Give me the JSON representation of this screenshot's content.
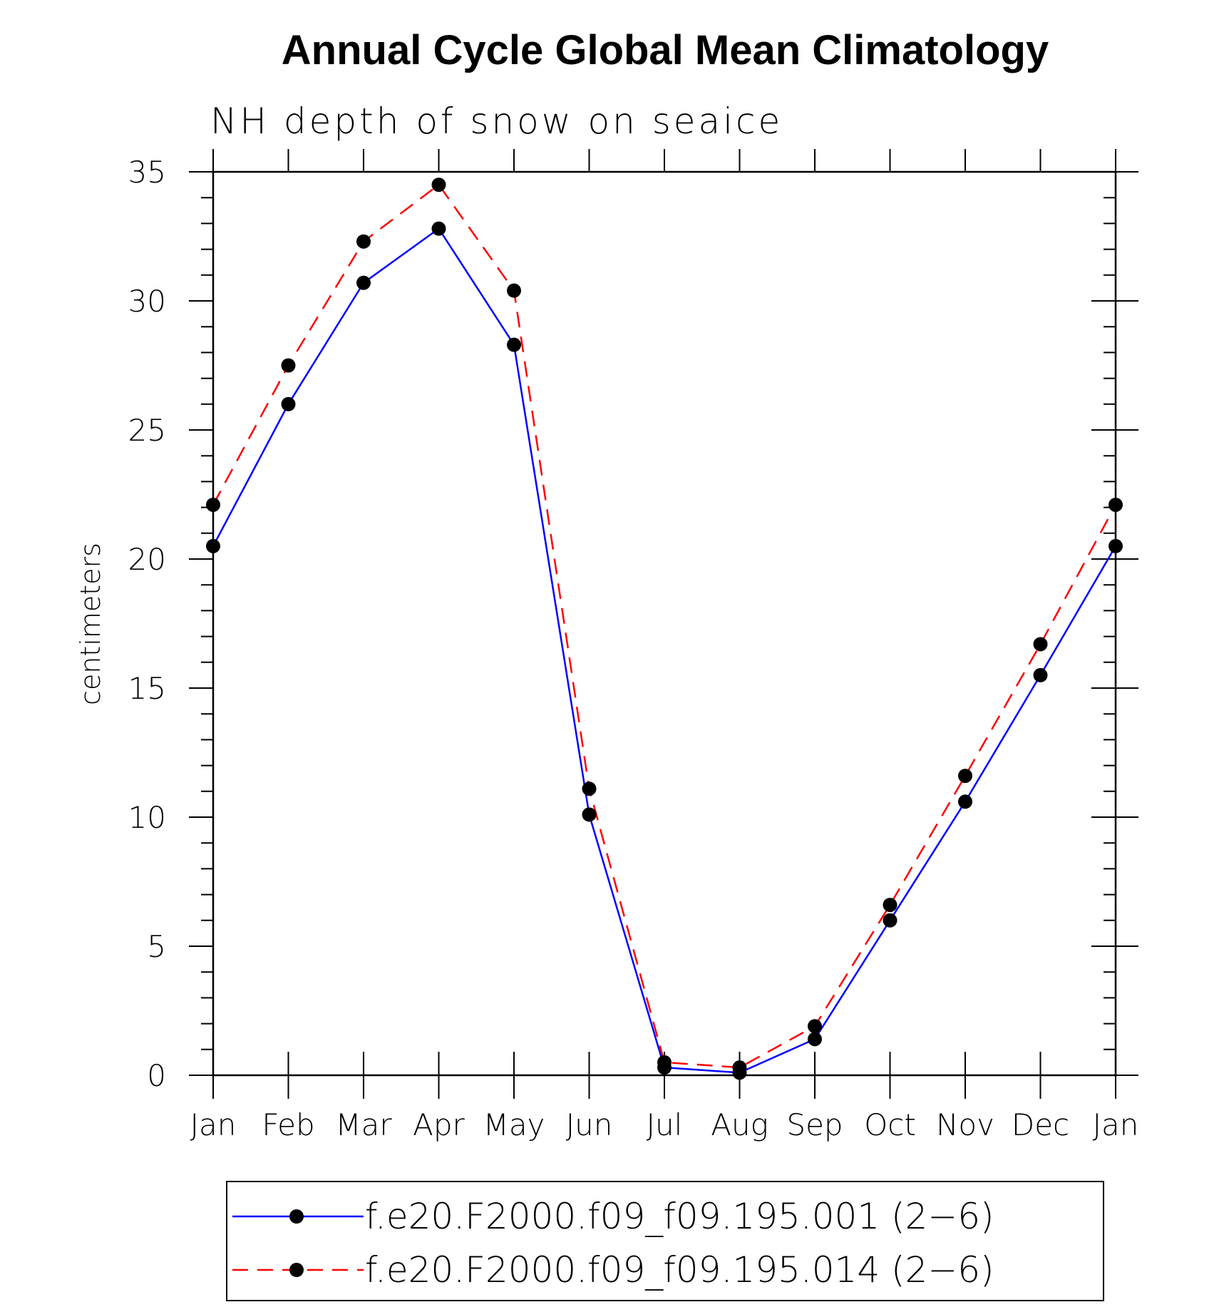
{
  "chart_data": {
    "type": "line",
    "title": "Annual Cycle Global Mean Climatology",
    "subtitle": "NH depth of snow on seaice",
    "xlabel": "",
    "ylabel": "centimeters",
    "categories": [
      "Jan",
      "Feb",
      "Mar",
      "Apr",
      "May",
      "Jun",
      "Jul",
      "Aug",
      "Sep",
      "Oct",
      "Nov",
      "Dec",
      "Jan"
    ],
    "ylim": [
      0,
      35
    ],
    "yticks": [
      0,
      5,
      10,
      15,
      20,
      25,
      30,
      35
    ],
    "grid": false,
    "legend_position": "bottom",
    "series": [
      {
        "name": "f.e20.F2000.f09_f09.195.001 (2−6)",
        "color": "#0000ff",
        "line_style": "solid",
        "marker": "filled-circle",
        "values": [
          20.5,
          26.0,
          30.7,
          32.8,
          28.3,
          10.1,
          0.3,
          0.1,
          1.4,
          6.0,
          10.6,
          15.5,
          20.5
        ]
      },
      {
        "name": "f.e20.F2000.f09_f09.195.014 (2−6)",
        "color": "#ff0000",
        "line_style": "dashed",
        "marker": "filled-circle",
        "values": [
          22.1,
          27.5,
          32.3,
          34.5,
          30.4,
          11.1,
          0.5,
          0.3,
          1.9,
          6.6,
          11.6,
          16.7,
          22.1
        ]
      }
    ]
  }
}
